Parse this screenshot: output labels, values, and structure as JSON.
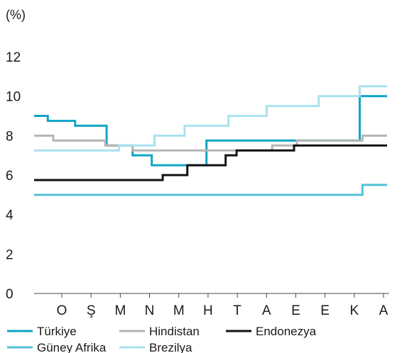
{
  "chart_data": {
    "type": "line",
    "step": true,
    "unit_label": "(%)",
    "title": "",
    "xlabel": "",
    "ylabel": "(%)",
    "ylim": [
      0,
      12
    ],
    "yticks": [
      0,
      2,
      4,
      6,
      8,
      10,
      12
    ],
    "categories": [
      "O",
      "Ş",
      "M",
      "N",
      "M",
      "H",
      "T",
      "A",
      "E",
      "E",
      "K",
      "A"
    ],
    "grid": false,
    "legend_position": "bottom",
    "series": [
      {
        "name": "Türkiye",
        "color": "#0ea5c6",
        "x": [
          0,
          0.5,
          1.4,
          1.5,
          2.55,
          2.65,
          3.6,
          3.7,
          4.3,
          4.5,
          6.15,
          6.3,
          11.85,
          11.9,
          12.9
        ],
        "y": [
          9.0,
          8.75,
          8.75,
          8.5,
          8.5,
          7.5,
          7.0,
          7.0,
          6.5,
          6.5,
          6.5,
          7.75,
          7.75,
          10.0,
          10.0
        ]
      },
      {
        "name": "Hindistan",
        "color": "#b5b5b5",
        "x": [
          0,
          0.7,
          2.55,
          2.6,
          3.5,
          3.6,
          8.6,
          8.7,
          9.5,
          9.6,
          11.9,
          12.0,
          12.9
        ],
        "y": [
          8.0,
          7.75,
          7.75,
          7.5,
          7.5,
          7.25,
          7.25,
          7.5,
          7.5,
          7.75,
          7.75,
          8.0,
          8.0
        ]
      },
      {
        "name": "Endonezya",
        "color": "#111111",
        "x": [
          0,
          4.6,
          4.7,
          5.5,
          5.6,
          6.9,
          7.0,
          7.3,
          7.4,
          9.4,
          9.5,
          12.9
        ],
        "y": [
          5.75,
          5.75,
          6.0,
          6.0,
          6.5,
          6.5,
          7.0,
          7.0,
          7.25,
          7.25,
          7.5,
          7.5
        ]
      },
      {
        "name": "Güney Afrika",
        "color": "#52c3d6",
        "x": [
          0,
          11.9,
          12.0,
          12.9
        ],
        "y": [
          5.0,
          5.0,
          5.5,
          5.5
        ]
      },
      {
        "name": "Brezilya",
        "color": "#a9e2ef",
        "x": [
          0,
          3.0,
          3.1,
          4.3,
          4.4,
          5.4,
          5.5,
          7.0,
          7.1,
          8.4,
          8.5,
          10.3,
          10.4,
          11.8,
          11.9,
          12.9
        ],
        "y": [
          7.25,
          7.25,
          7.5,
          7.5,
          8.0,
          8.0,
          8.5,
          8.5,
          9.0,
          9.0,
          9.5,
          9.5,
          10.0,
          10.0,
          10.5,
          10.5
        ]
      }
    ]
  }
}
